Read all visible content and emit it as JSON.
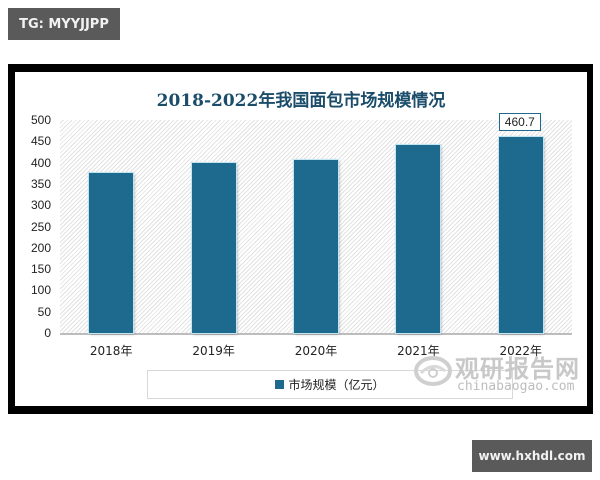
{
  "overlays": {
    "top_tag": "TG: MYYJJPP",
    "bottom_tag": "www.hxhdl.com"
  },
  "watermark": {
    "cn": "观研报告网",
    "en": "chinabaogao.com"
  },
  "colors": {
    "bar": "#1d6a8e",
    "title": "#1b4d6b",
    "frame": "#000000",
    "tag_bg": "#5a5a5a"
  },
  "chart_data": {
    "type": "bar",
    "title": "2018-2022年我国面包市场规模情况",
    "categories": [
      "2018年",
      "2019年",
      "2020年",
      "2021年",
      "2022年"
    ],
    "series": [
      {
        "name": "市场规模（亿元）",
        "values": [
          376,
          399,
          406,
          441,
          460.7
        ]
      }
    ],
    "data_labels": [
      {
        "category": "2022年",
        "text": "460.7"
      }
    ],
    "xlabel": "",
    "ylabel": "",
    "ylim": [
      0,
      500
    ],
    "yticks": [
      0,
      50,
      100,
      150,
      200,
      250,
      300,
      350,
      400,
      450,
      500
    ],
    "grid": false,
    "legend_position": "bottom"
  }
}
